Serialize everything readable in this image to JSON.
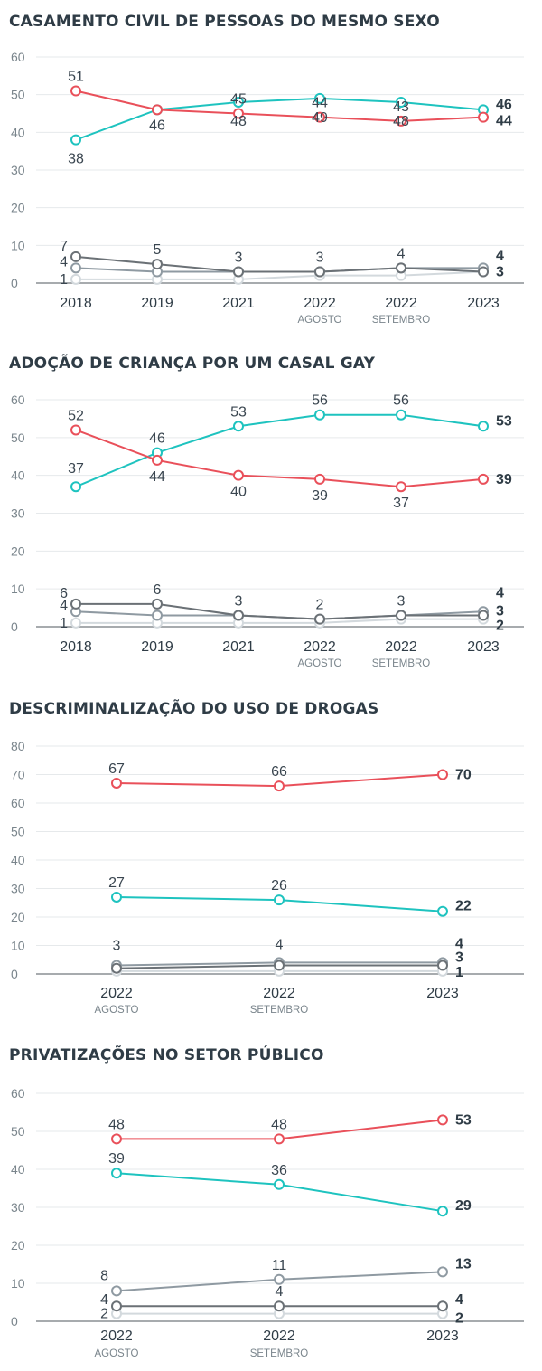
{
  "colors": {
    "against": "#e9505a",
    "favor": "#1ec3bf",
    "neither": "#8f9aa2",
    "dontknow": "#6b7176",
    "other": "#d3d9dd",
    "grid": "#e6e9eb",
    "axis": "#8a8f93",
    "text": "#3a4650",
    "tick": "#7a858c"
  },
  "chart_data": [
    {
      "type": "line",
      "title": "CASAMENTO CIVIL DE PESSOAS DO MESMO SEXO",
      "categories": [
        "2018",
        "2019",
        "2021",
        "2022",
        "2022",
        "2023"
      ],
      "sublabels": [
        "",
        "",
        "",
        "AGOSTO",
        "SETEMBRO",
        ""
      ],
      "ylim": [
        0,
        60
      ],
      "yticks": [
        "0",
        "10",
        "20",
        "30",
        "40",
        "50",
        "60"
      ],
      "series": [
        {
          "name": "against",
          "values": [
            51,
            46,
            45,
            44,
            43,
            44
          ],
          "labels": [
            "51",
            "",
            "45",
            "44",
            "43",
            "44"
          ]
        },
        {
          "name": "favor",
          "values": [
            38,
            46,
            48,
            49,
            48,
            46
          ],
          "labels": [
            "38",
            "46",
            "48",
            "49",
            "48",
            "46"
          ]
        },
        {
          "name": "dontknow",
          "values": [
            7,
            5,
            3,
            3,
            4,
            3
          ],
          "labels": [
            "7",
            "5",
            "3",
            "3",
            "4",
            "3"
          ]
        },
        {
          "name": "neither",
          "values": [
            4,
            3,
            3,
            3,
            4,
            4
          ],
          "labels": [
            "4",
            "",
            "",
            "",
            "",
            "4"
          ]
        },
        {
          "name": "other",
          "values": [
            1,
            1,
            1,
            2,
            2,
            3
          ],
          "labels": [
            "1",
            "",
            "",
            "",
            "",
            ""
          ]
        }
      ]
    },
    {
      "type": "line",
      "title": "ADOÇÃO DE CRIANÇA POR UM CASAL GAY",
      "categories": [
        "2018",
        "2019",
        "2021",
        "2022",
        "2022",
        "2023"
      ],
      "sublabels": [
        "",
        "",
        "",
        "AGOSTO",
        "SETEMBRO",
        ""
      ],
      "ylim": [
        0,
        60
      ],
      "yticks": [
        "0",
        "10",
        "20",
        "30",
        "40",
        "50",
        "60"
      ],
      "series": [
        {
          "name": "against",
          "values": [
            52,
            44,
            40,
            39,
            37,
            39
          ],
          "labels": [
            "52",
            "44",
            "40",
            "39",
            "37",
            "39"
          ]
        },
        {
          "name": "favor",
          "values": [
            37,
            46,
            53,
            56,
            56,
            53
          ],
          "labels": [
            "37",
            "46",
            "53",
            "56",
            "56",
            "53"
          ]
        },
        {
          "name": "dontknow",
          "values": [
            6,
            6,
            3,
            2,
            3,
            3
          ],
          "labels": [
            "6",
            "6",
            "3",
            "2",
            "3",
            "3"
          ]
        },
        {
          "name": "neither",
          "values": [
            4,
            3,
            3,
            2,
            3,
            4
          ],
          "labels": [
            "4",
            "",
            "",
            "",
            "",
            "4"
          ]
        },
        {
          "name": "other",
          "values": [
            1,
            1,
            1,
            1,
            2,
            2
          ],
          "labels": [
            "1",
            "",
            "",
            "",
            "",
            "2"
          ]
        }
      ]
    },
    {
      "type": "line",
      "title": "DESCRIMINALIZAÇÃO DO USO DE DROGAS",
      "categories": [
        "2022",
        "2022",
        "2023"
      ],
      "sublabels": [
        "AGOSTO",
        "SETEMBRO",
        ""
      ],
      "ylim": [
        0,
        80
      ],
      "yticks": [
        "0",
        "10",
        "20",
        "30",
        "40",
        "50",
        "60",
        "70",
        "80"
      ],
      "series": [
        {
          "name": "against",
          "values": [
            67,
            66,
            70
          ],
          "labels": [
            "67",
            "66",
            "70"
          ]
        },
        {
          "name": "favor",
          "values": [
            27,
            26,
            22
          ],
          "labels": [
            "27",
            "26",
            "22"
          ]
        },
        {
          "name": "neither",
          "values": [
            3,
            4,
            4
          ],
          "labels": [
            "3",
            "4",
            "4"
          ]
        },
        {
          "name": "dontknow",
          "values": [
            2,
            3,
            3
          ],
          "labels": [
            "",
            "",
            "3"
          ]
        },
        {
          "name": "other",
          "values": [
            1,
            1,
            1
          ],
          "labels": [
            "",
            "",
            "1"
          ]
        }
      ]
    },
    {
      "type": "line",
      "title": "PRIVATIZAÇÕES NO SETOR PÚBLICO",
      "categories": [
        "2022",
        "2022",
        "2023"
      ],
      "sublabels": [
        "AGOSTO",
        "SETEMBRO",
        ""
      ],
      "ylim": [
        0,
        60
      ],
      "yticks": [
        "0",
        "10",
        "20",
        "30",
        "40",
        "50",
        "60"
      ],
      "series": [
        {
          "name": "against",
          "values": [
            48,
            48,
            53
          ],
          "labels": [
            "48",
            "48",
            "53"
          ]
        },
        {
          "name": "favor",
          "values": [
            39,
            36,
            29
          ],
          "labels": [
            "39",
            "36",
            "29"
          ]
        },
        {
          "name": "neither",
          "values": [
            8,
            11,
            13
          ],
          "labels": [
            "8",
            "11",
            "13"
          ]
        },
        {
          "name": "dontknow",
          "values": [
            4,
            4,
            4
          ],
          "labels": [
            "4",
            "4",
            "4"
          ]
        },
        {
          "name": "other",
          "values": [
            2,
            2,
            2
          ],
          "labels": [
            "2",
            "",
            "2"
          ]
        }
      ]
    }
  ]
}
